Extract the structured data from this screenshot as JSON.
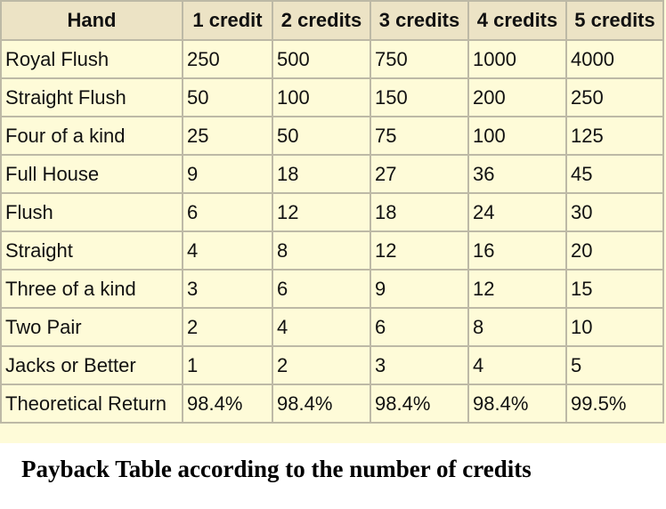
{
  "table": {
    "headers": [
      "Hand",
      "1 credit",
      "2 credits",
      "3 credits",
      "4 credits",
      "5 credits"
    ],
    "rows": [
      [
        "Royal Flush",
        "250",
        "500",
        "750",
        "1000",
        "4000"
      ],
      [
        "Straight Flush",
        "50",
        "100",
        "150",
        "200",
        "250"
      ],
      [
        "Four of a kind",
        "25",
        "50",
        "75",
        "100",
        "125"
      ],
      [
        "Full House",
        "9",
        "18",
        "27",
        "36",
        "45"
      ],
      [
        "Flush",
        "6",
        "12",
        "18",
        "24",
        "30"
      ],
      [
        "Straight",
        "4",
        "8",
        "12",
        "16",
        "20"
      ],
      [
        "Three of a kind",
        "3",
        "6",
        "9",
        "12",
        "15"
      ],
      [
        "Two Pair",
        "2",
        "4",
        "6",
        "8",
        "10"
      ],
      [
        "Jacks or Better",
        "1",
        "2",
        "3",
        "4",
        "5"
      ],
      [
        "Theoretical Return",
        "98.4%",
        "98.4%",
        "98.4%",
        "98.4%",
        "99.5%"
      ]
    ]
  },
  "caption": "Payback Table according to the number of credits",
  "colors": {
    "background": "#fefbd8",
    "header_background": "#ece3c5",
    "border": "#bdb9a6"
  }
}
